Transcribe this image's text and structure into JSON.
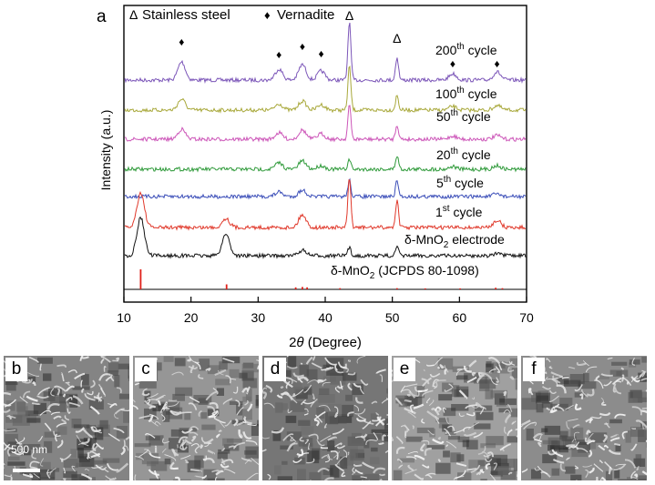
{
  "panel_a": {
    "label": "a",
    "legend": {
      "stainless_marker": "Δ",
      "stainless_label": "Stainless steel",
      "vernadite_marker": "♦",
      "vernadite_label": "Vernadite"
    },
    "ylabel": "Intensity (a.u.)",
    "xlabel_prefix": "2",
    "xlabel_theta": "θ",
    "xlabel_suffix": " (Degree)",
    "ref_label_pre": "δ-MnO",
    "ref_label_sub": "2",
    "ref_label_post": " (JCPDS 80-1098)"
  },
  "sem_panels": [
    {
      "label": "b",
      "scale_text": "500 nm"
    },
    {
      "label": "c"
    },
    {
      "label": "d"
    },
    {
      "label": "e"
    },
    {
      "label": "f"
    }
  ],
  "chart_data": {
    "type": "line",
    "xlabel": "2θ (Degree)",
    "ylabel": "Intensity (a.u.)",
    "xlim": [
      10,
      70
    ],
    "xticks": [
      10,
      20,
      30,
      40,
      50,
      60,
      70
    ],
    "grid": false,
    "series": [
      {
        "name": "200th cycle",
        "label_main": "200",
        "label_sup": "th",
        "label_post": " cycle",
        "color": "#7b55b8",
        "peaks": [
          [
            18.6,
            1.0
          ],
          [
            33.1,
            0.6
          ],
          [
            36.6,
            0.85
          ],
          [
            39.4,
            0.5
          ],
          [
            43.6,
            3.2
          ],
          [
            50.7,
            1.25
          ],
          [
            59.0,
            0.35
          ],
          [
            65.6,
            0.45
          ]
        ]
      },
      {
        "name": "100th cycle",
        "label_main": "100",
        "label_sup": "th",
        "label_post": " cycle",
        "color": "#a8a83a",
        "peaks": [
          [
            18.6,
            0.6
          ],
          [
            33.1,
            0.35
          ],
          [
            36.6,
            0.5
          ],
          [
            39.4,
            0.3
          ],
          [
            43.6,
            2.4
          ],
          [
            50.7,
            0.8
          ],
          [
            59.0,
            0.2
          ],
          [
            65.6,
            0.25
          ]
        ]
      },
      {
        "name": "50th cycle",
        "label_main": "50",
        "label_sup": "th",
        "label_post": " cycle",
        "color": "#cc55b8",
        "peaks": [
          [
            18.6,
            0.55
          ],
          [
            33.1,
            0.35
          ],
          [
            36.6,
            0.5
          ],
          [
            39.4,
            0.3
          ],
          [
            43.6,
            1.9
          ],
          [
            50.7,
            0.8
          ],
          [
            59.0,
            0.18
          ],
          [
            65.6,
            0.2
          ]
        ]
      },
      {
        "name": "20th cycle",
        "label_main": "20",
        "label_sup": "th",
        "label_post": " cycle",
        "color": "#2f9a3a",
        "peaks": [
          [
            33.1,
            0.35
          ],
          [
            36.6,
            0.45
          ],
          [
            39.4,
            0.2
          ],
          [
            43.6,
            0.55
          ],
          [
            50.7,
            0.75
          ],
          [
            59.0,
            0.15
          ],
          [
            65.6,
            0.2
          ]
        ]
      },
      {
        "name": "5th cycle",
        "label_main": "5",
        "label_sup": "th",
        "label_post": " cycle",
        "color": "#3a4db8",
        "peaks": [
          [
            33.1,
            0.25
          ],
          [
            36.6,
            0.35
          ],
          [
            43.6,
            0.9
          ],
          [
            50.7,
            0.85
          ],
          [
            65.6,
            0.15
          ]
        ]
      },
      {
        "name": "1st cycle",
        "label_main": "1",
        "label_sup": "st",
        "label_post": " cycle",
        "color": "#e0382a",
        "peaks": [
          [
            12.5,
            1.9
          ],
          [
            25.2,
            0.5
          ],
          [
            36.6,
            0.7
          ],
          [
            43.6,
            2.7
          ],
          [
            50.7,
            1.5
          ],
          [
            65.6,
            0.4
          ]
        ]
      },
      {
        "name": "δ-MnO2 electrode",
        "label_main": "δ-MnO",
        "label_sub": "2",
        "label_post": " electrode",
        "color": "#111111",
        "peaks": [
          [
            12.5,
            2.1
          ],
          [
            25.2,
            1.2
          ],
          [
            36.6,
            0.3
          ],
          [
            43.6,
            0.45
          ],
          [
            50.7,
            0.5
          ],
          [
            65.6,
            0.1
          ]
        ]
      }
    ],
    "reference": {
      "name": "δ-MnO2 (JCPDS 80-1098)",
      "color": "#e0201a",
      "lines": [
        [
          12.5,
          1.0
        ],
        [
          25.3,
          0.25
        ],
        [
          35.6,
          0.1
        ],
        [
          36.6,
          0.12
        ],
        [
          37.3,
          0.1
        ],
        [
          42.2,
          0.06
        ],
        [
          50.7,
          0.06
        ],
        [
          54.9,
          0.05
        ],
        [
          60.1,
          0.05
        ],
        [
          65.4,
          0.08
        ],
        [
          66.4,
          0.06
        ]
      ]
    },
    "annotations": [
      {
        "marker": "♦",
        "x": 18.6
      },
      {
        "marker": "♦",
        "x": 33.1
      },
      {
        "marker": "♦",
        "x": 36.6
      },
      {
        "marker": "♦",
        "x": 39.4
      },
      {
        "marker": "Δ",
        "x": 43.6
      },
      {
        "marker": "Δ",
        "x": 50.7
      },
      {
        "marker": "♦",
        "x": 59.0
      },
      {
        "marker": "♦",
        "x": 65.6
      }
    ]
  }
}
